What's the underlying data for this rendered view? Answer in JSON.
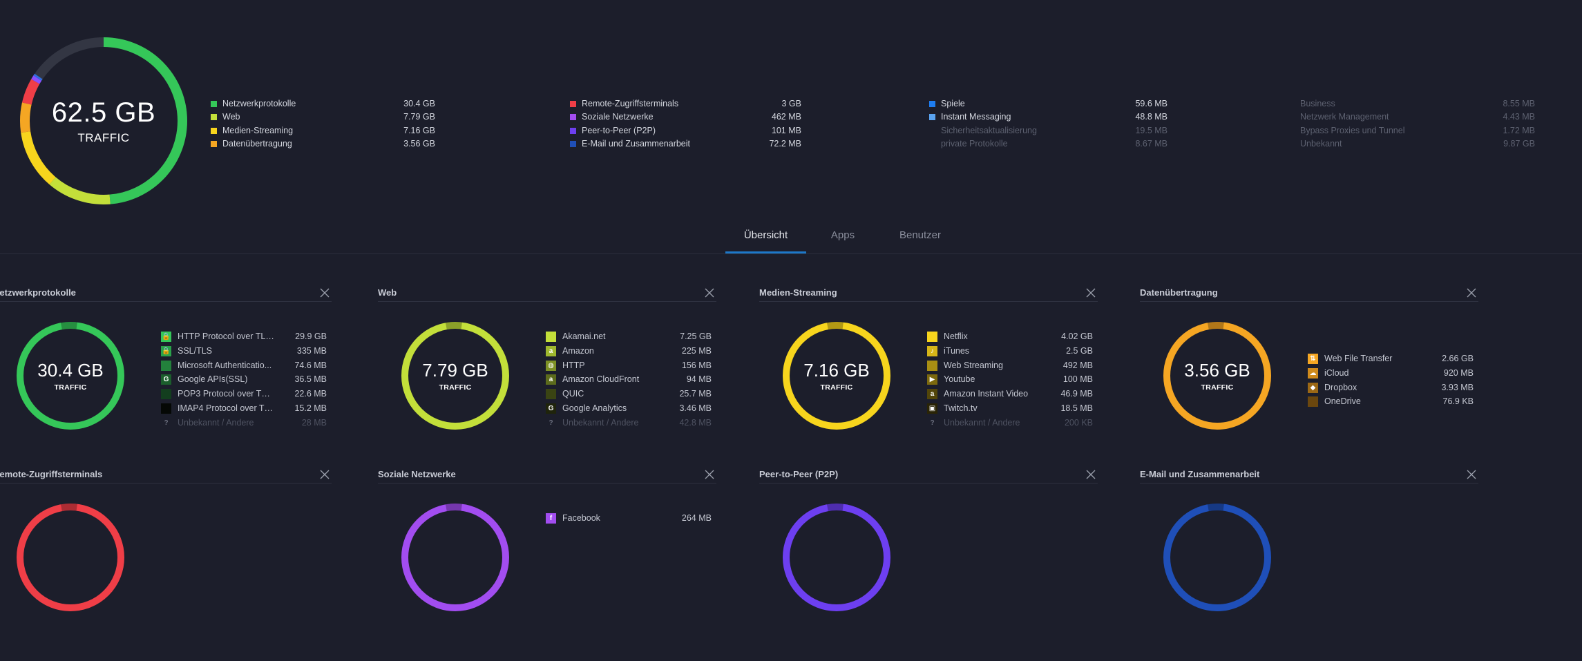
{
  "overview": {
    "total": "62.5 GB",
    "total_label": "TRAFFIC",
    "ring_colors": {
      "green": "#35c759",
      "lime": "#c3df3a",
      "yellow": "#f7d51d",
      "orange": "#f5a623",
      "red": "#ef3e47",
      "purple": "#8a4fff",
      "blue": "#2f6fe0",
      "track": "#333643"
    },
    "legend_columns": [
      [
        {
          "name": "Netzwerkprotokolle",
          "value": "30.4 GB",
          "color": "#35c759",
          "dim": false
        },
        {
          "name": "Web",
          "value": "7.79 GB",
          "color": "#c3df3a",
          "dim": false
        },
        {
          "name": "Medien-Streaming",
          "value": "7.16 GB",
          "color": "#f7d51d",
          "dim": false
        },
        {
          "name": "Datenübertragung",
          "value": "3.56 GB",
          "color": "#f5a623",
          "dim": false
        }
      ],
      [
        {
          "name": "Remote-Zugriffsterminals",
          "value": "3 GB",
          "color": "#ef3e47",
          "dim": false
        },
        {
          "name": "Soziale Netzwerke",
          "value": "462 MB",
          "color": "#a24df0",
          "dim": false
        },
        {
          "name": "Peer-to-Peer (P2P)",
          "value": "101 MB",
          "color": "#6d3ff0",
          "dim": false
        },
        {
          "name": "E-Mail und Zusammenarbeit",
          "value": "72.2 MB",
          "color": "#1f4fb8",
          "dim": false
        }
      ],
      [
        {
          "name": "Spiele",
          "value": "59.6 MB",
          "color": "#1e7df0",
          "dim": false
        },
        {
          "name": "Instant Messaging",
          "value": "48.8 MB",
          "color": "#5aa3f0",
          "dim": false
        },
        {
          "name": "Sicherheitsaktualisierung",
          "value": "19.5 MB",
          "color": "",
          "dim": true
        },
        {
          "name": "private Protokolle",
          "value": "8.67 MB",
          "color": "",
          "dim": true
        }
      ],
      [
        {
          "name": "Business",
          "value": "8.55 MB",
          "color": "",
          "dim": true
        },
        {
          "name": "Netzwerk Management",
          "value": "4.43 MB",
          "color": "",
          "dim": true
        },
        {
          "name": "Bypass Proxies und Tunnel",
          "value": "1.72 MB",
          "color": "",
          "dim": true
        },
        {
          "name": "Unbekannt",
          "value": "9.87 GB",
          "color": "",
          "dim": true
        }
      ]
    ]
  },
  "tabs": [
    {
      "label": "Übersicht",
      "active": true
    },
    {
      "label": "Apps",
      "active": false
    },
    {
      "label": "Benutzer",
      "active": false
    }
  ],
  "panels": [
    {
      "title": "Netzwerkprotokolle",
      "total": "30.4 GB",
      "label": "TRAFFIC",
      "color": "#35c759",
      "apps": [
        {
          "name": "HTTP Protocol over TLS ...",
          "value": "29.9 GB",
          "icon": "lock-icon",
          "glyph": "🔒",
          "bg": "#35c759",
          "dim": false
        },
        {
          "name": "SSL/TLS",
          "value": "335 MB",
          "icon": "lock-icon",
          "glyph": "🔒",
          "bg": "#2aa24a",
          "dim": false
        },
        {
          "name": "Microsoft Authenticatio...",
          "value": "74.6 MB",
          "icon": "microsoft-icon",
          "glyph": "",
          "bg": "#23813c",
          "dim": false
        },
        {
          "name": "Google APIs(SSL)",
          "value": "36.5 MB",
          "icon": "google-icon",
          "glyph": "G",
          "bg": "#1b5e2c",
          "dim": false
        },
        {
          "name": "POP3 Protocol over TLS ...",
          "value": "22.6 MB",
          "icon": "mail-icon",
          "glyph": "",
          "bg": "#133e1e",
          "dim": false
        },
        {
          "name": "IMAP4 Protocol over TL...",
          "value": "15.2 MB",
          "icon": "mail-icon",
          "glyph": "",
          "bg": "#050805",
          "dim": false
        },
        {
          "name": "Unbekannt / Andere",
          "value": "28 MB",
          "icon": "question-icon",
          "glyph": "?",
          "bg": "transparent",
          "dim": true
        }
      ]
    },
    {
      "title": "Web",
      "total": "7.79 GB",
      "label": "TRAFFIC",
      "color": "#c3df3a",
      "apps": [
        {
          "name": "Akamai.net",
          "value": "7.25 GB",
          "icon": "akamai-icon",
          "glyph": "",
          "bg": "#c3df3a",
          "dim": false
        },
        {
          "name": "Amazon",
          "value": "225 MB",
          "icon": "amazon-icon",
          "glyph": "a",
          "bg": "#9fb82e",
          "dim": false
        },
        {
          "name": "HTTP",
          "value": "156 MB",
          "icon": "globe-icon",
          "glyph": "◍",
          "bg": "#7d9125",
          "dim": false
        },
        {
          "name": "Amazon CloudFront",
          "value": "94 MB",
          "icon": "amazon-icon",
          "glyph": "a",
          "bg": "#5c6b1c",
          "dim": false
        },
        {
          "name": "QUIC",
          "value": "25.7 MB",
          "icon": "quic-icon",
          "glyph": "",
          "bg": "#3a4413",
          "dim": false
        },
        {
          "name": "Google Analytics",
          "value": "3.46 MB",
          "icon": "google-icon",
          "glyph": "G",
          "bg": "#1f240b",
          "dim": false
        },
        {
          "name": "Unbekannt / Andere",
          "value": "42.8 MB",
          "icon": "question-icon",
          "glyph": "?",
          "bg": "transparent",
          "dim": true
        }
      ]
    },
    {
      "title": "Medien-Streaming",
      "total": "7.16 GB",
      "label": "TRAFFIC",
      "color": "#f7d51d",
      "apps": [
        {
          "name": "Netflix",
          "value": "4.02 GB",
          "icon": "netflix-icon",
          "glyph": "",
          "bg": "#f7d51d",
          "dim": false
        },
        {
          "name": "iTunes",
          "value": "2.5 GB",
          "icon": "itunes-icon",
          "glyph": "♪",
          "bg": "#d7b618",
          "dim": false
        },
        {
          "name": "Web Streaming",
          "value": "492 MB",
          "icon": "stream-icon",
          "glyph": "",
          "bg": "#a98f13",
          "dim": false
        },
        {
          "name": "Youtube",
          "value": "100 MB",
          "icon": "youtube-icon",
          "glyph": "▶",
          "bg": "#7c690e",
          "dim": false
        },
        {
          "name": "Amazon Instant Video",
          "value": "46.9 MB",
          "icon": "amazon-icon",
          "glyph": "a",
          "bg": "#524509",
          "dim": false
        },
        {
          "name": "Twitch.tv",
          "value": "18.5 MB",
          "icon": "twitch-icon",
          "glyph": "▣",
          "bg": "#2a2405",
          "dim": false
        },
        {
          "name": "Unbekannt / Andere",
          "value": "200 KB",
          "icon": "question-icon",
          "glyph": "?",
          "bg": "transparent",
          "dim": true
        }
      ]
    },
    {
      "title": "Datenübertragung",
      "total": "3.56 GB",
      "label": "TRAFFIC",
      "color": "#f5a623",
      "apps": [
        {
          "name": "Web File Transfer",
          "value": "2.66 GB",
          "icon": "transfer-icon",
          "glyph": "⇅",
          "bg": "#f5a623",
          "dim": false
        },
        {
          "name": "iCloud",
          "value": "920 MB",
          "icon": "cloud-icon",
          "glyph": "☁",
          "bg": "#cf8a1c",
          "dim": false
        },
        {
          "name": "Dropbox",
          "value": "3.93 MB",
          "icon": "dropbox-icon",
          "glyph": "◆",
          "bg": "#9c6815",
          "dim": false
        },
        {
          "name": "OneDrive",
          "value": "76.9 KB",
          "icon": "onedrive-icon",
          "glyph": "",
          "bg": "#6b470e",
          "dim": false
        }
      ]
    },
    {
      "title": "Remote-Zugriffsterminals",
      "total": "",
      "label": "",
      "color": "#ef3e47",
      "apps": []
    },
    {
      "title": "Soziale Netzwerke",
      "total": "",
      "label": "",
      "color": "#a24df0",
      "apps": [
        {
          "name": "Facebook",
          "value": "264 MB",
          "icon": "facebook-icon",
          "glyph": "f",
          "bg": "#a24df0",
          "dim": false
        }
      ]
    },
    {
      "title": "Peer-to-Peer (P2P)",
      "total": "",
      "label": "",
      "color": "#6d3ff0",
      "apps": []
    },
    {
      "title": "E-Mail und Zusammenarbeit",
      "total": "",
      "label": "",
      "color": "#1f4fb8",
      "apps": []
    }
  ]
}
